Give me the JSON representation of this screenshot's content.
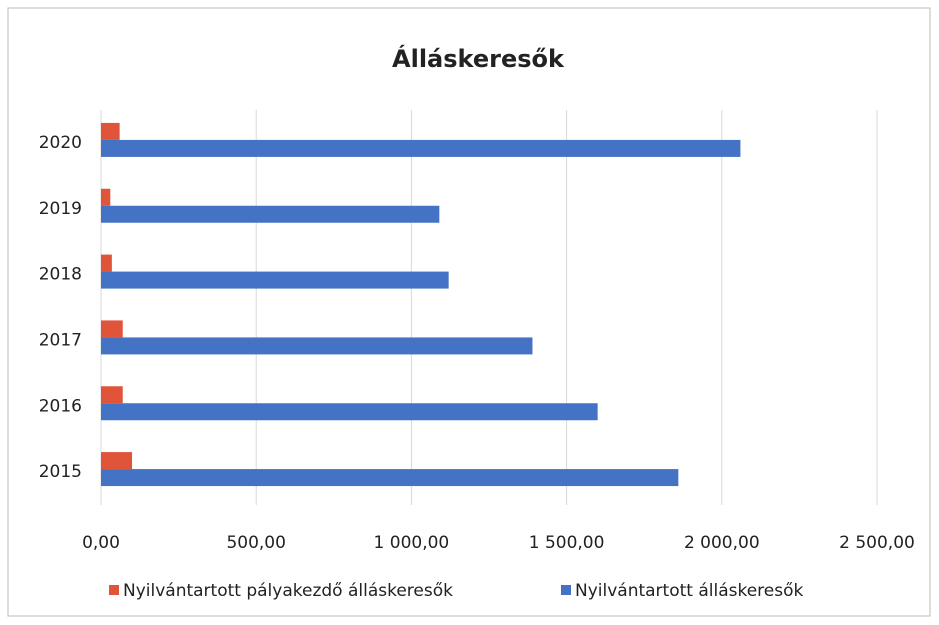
{
  "chart_data": {
    "type": "hbar",
    "title": "Álláskeresők",
    "categories": [
      "2015",
      "2016",
      "2017",
      "2018",
      "2019",
      "2020"
    ],
    "series": [
      {
        "name": "Nyilvántartott pályakezdő álláskeresők",
        "color": "#e0543a",
        "values": [
          100,
          70,
          70,
          35,
          30,
          60
        ]
      },
      {
        "name": "Nyilvántartott álláskeresők",
        "color": "#4472c4",
        "values": [
          1860,
          1600,
          1390,
          1120,
          1090,
          2060
        ]
      }
    ],
    "xlim": [
      0,
      2500
    ],
    "xticks": [
      {
        "value": 0,
        "label": "0,00"
      },
      {
        "value": 500,
        "label": "500,00"
      },
      {
        "value": 1000,
        "label": "1 000,00"
      },
      {
        "value": 1500,
        "label": "1 500,00"
      },
      {
        "value": 2000,
        "label": "2 000,00"
      },
      {
        "value": 2500,
        "label": "2 500,00"
      }
    ],
    "grid": true,
    "legend": "bottom"
  }
}
